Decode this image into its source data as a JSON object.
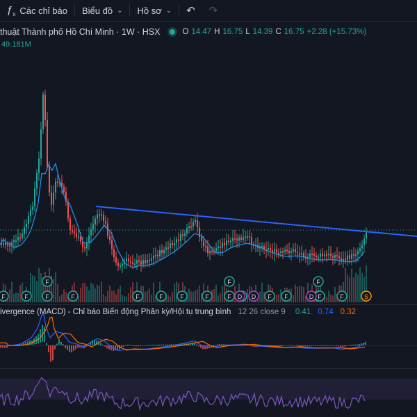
{
  "toolbar": {
    "indicators_label": "Các chỉ báo",
    "chart_type_label": "Biểu đồ",
    "profile_label": "Hồ sơ",
    "undo_icon": "undo-icon",
    "redo_icon": "redo-icon"
  },
  "legend": {
    "title": "thuật Thành phố Hồ Chí Minh · 1W · HSX",
    "open_key": "O",
    "open": "14.47",
    "high_key": "H",
    "high": "16.75",
    "low_key": "L",
    "low": "14.39",
    "close_key": "C",
    "close": "16.75",
    "change": "+2.28 (+15.73%)",
    "status_color": "#26a69a"
  },
  "volume_value": "49.181M",
  "macd": {
    "name": "ivergence (MACD) - Chỉ báo Biến động Phân kỳ/Hội tụ trung bình",
    "params": "12 26 close 9",
    "hist": "0.41",
    "macd": "0.74",
    "signal": "0.32"
  },
  "event_markers": {
    "f_label": "F",
    "d_label": "D",
    "s_label": "S"
  },
  "colors": {
    "up": "#26a69a",
    "down": "#ef5350",
    "trendline": "#2962ff",
    "ma": "#2196f3",
    "macd_line": "#2962ff",
    "signal_line": "#ff6d00",
    "rsi": "#7e57c2"
  }
}
